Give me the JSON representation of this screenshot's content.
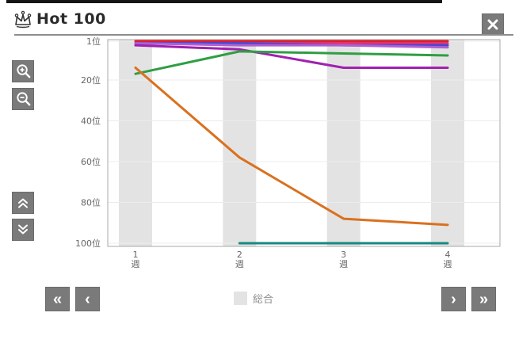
{
  "window": {
    "title": "Hot 100",
    "title_icon": "crown",
    "close_icon": "x-mark"
  },
  "toolbar": {
    "zoom_in_icon": "magnifier-plus",
    "zoom_out_icon": "magnifier-minus",
    "scroll_up_icon": "double-chevron-up",
    "scroll_down_icon": "double-chevron-down"
  },
  "pager": {
    "first_icon": "double-chevron-left",
    "prev_icon": "chevron-left",
    "next_icon": "chevron-right",
    "last_icon": "double-chevron-right",
    "first_glyph": "«",
    "prev_glyph": "‹",
    "next_glyph": "›",
    "last_glyph": "»"
  },
  "legend": [
    {
      "label": "総合",
      "swatch_color": "#e3e3e3"
    }
  ],
  "chart_data": {
    "type": "line",
    "title": "Hot 100 weekly rank history",
    "x": [
      1,
      2,
      3,
      4
    ],
    "x_tick_labels": [
      [
        "1",
        "週"
      ],
      [
        "2",
        "週"
      ],
      [
        "3",
        "週"
      ],
      [
        "4",
        "週"
      ]
    ],
    "y_axis": {
      "tick_labels": [
        "1位",
        "20位",
        "40位",
        "60位",
        "80位",
        "100位"
      ],
      "ticks": [
        1,
        20,
        40,
        60,
        80,
        100
      ],
      "inverted": true,
      "range": [
        1,
        100
      ]
    },
    "grid": true,
    "highlight_band_color": "#e3e3e3",
    "legend_position": "bottom",
    "series": [
      {
        "name": "rank-series-red",
        "color": "#dc1f2e",
        "values": [
          1,
          1,
          1,
          1
        ]
      },
      {
        "name": "rank-series-pink",
        "color": "#e8336d",
        "values": [
          2,
          2,
          2,
          2
        ]
      },
      {
        "name": "rank-series-blue",
        "color": "#3f4ad6",
        "values": [
          2,
          2,
          3,
          3
        ]
      },
      {
        "name": "rank-series-orchid",
        "color": "#b05fd0",
        "values": [
          2,
          3,
          3,
          4
        ]
      },
      {
        "name": "rank-series-purple",
        "color": "#a021b0",
        "values": [
          3,
          5,
          14,
          14
        ]
      },
      {
        "name": "rank-series-green",
        "color": "#2f9e42",
        "values": [
          17,
          6,
          7,
          8
        ]
      },
      {
        "name": "rank-series-orange",
        "color": "#d9711f",
        "values": [
          14,
          58,
          88,
          91
        ]
      },
      {
        "name": "rank-series-teal",
        "color": "#178a7e",
        "values": [
          null,
          100,
          100,
          100
        ]
      }
    ]
  }
}
